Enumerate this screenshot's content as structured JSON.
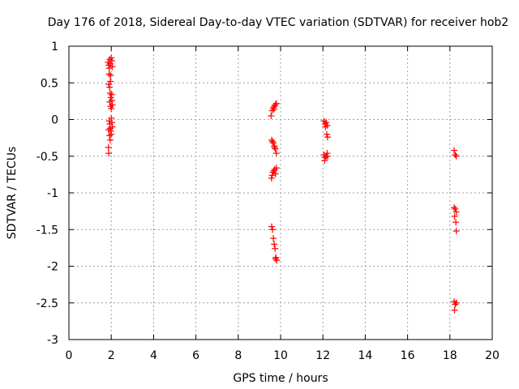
{
  "chart_data": {
    "type": "scatter",
    "title": "Day 176 of 2018, Sidereal Day-to-day VTEC variation (SDTVAR) for receiver hob2",
    "xlabel": "GPS time / hours",
    "ylabel": "SDTVAR / TECUs",
    "xlim": [
      0,
      20
    ],
    "ylim": [
      -3,
      1
    ],
    "xticks": [
      0,
      2,
      4,
      6,
      8,
      10,
      12,
      14,
      16,
      18,
      20
    ],
    "xtick_labels": [
      "0",
      "2",
      "4",
      "6",
      "8",
      "10",
      "12",
      "14",
      "16",
      "18",
      "20"
    ],
    "yticks": [
      -3,
      -2.5,
      -2,
      -1.5,
      -1,
      -0.5,
      0,
      0.5,
      1
    ],
    "ytick_labels": [
      "-3",
      "-2.5",
      "-2",
      "-1.5",
      "-1",
      "-0.5",
      "0",
      "0.5",
      "1"
    ],
    "grid": true,
    "marker": "+",
    "color": "#ff0000",
    "series": [
      {
        "name": "SDTVAR",
        "points": [
          [
            1.85,
            0.78
          ],
          [
            1.88,
            0.74
          ],
          [
            1.9,
            0.7
          ],
          [
            1.93,
            0.82
          ],
          [
            1.95,
            0.76
          ],
          [
            1.97,
            0.6
          ],
          [
            2.0,
            0.84
          ],
          [
            2.03,
            0.8
          ],
          [
            2.05,
            0.72
          ],
          [
            1.9,
            0.62
          ],
          [
            1.88,
            0.48
          ],
          [
            1.92,
            0.44
          ],
          [
            1.95,
            0.36
          ],
          [
            1.98,
            0.3
          ],
          [
            2.02,
            0.34
          ],
          [
            2.05,
            0.2
          ],
          [
            2.0,
            0.15
          ],
          [
            1.97,
            0.18
          ],
          [
            2.03,
            0.26
          ],
          [
            1.93,
            0.24
          ],
          [
            1.9,
            -0.02
          ],
          [
            1.93,
            -0.06
          ],
          [
            1.95,
            -0.12
          ],
          [
            1.98,
            -0.16
          ],
          [
            2.0,
            -0.2
          ],
          [
            1.92,
            -0.22
          ],
          [
            1.88,
            -0.14
          ],
          [
            2.03,
            -0.04
          ],
          [
            2.05,
            -0.1
          ],
          [
            1.95,
            -0.28
          ],
          [
            1.87,
            -0.38
          ],
          [
            1.88,
            -0.46
          ],
          [
            2.0,
            0.02
          ],
          [
            1.96,
            0.52
          ],
          [
            9.55,
            0.05
          ],
          [
            9.6,
            0.12
          ],
          [
            9.65,
            0.16
          ],
          [
            9.7,
            0.18
          ],
          [
            9.75,
            0.2
          ],
          [
            9.8,
            0.22
          ],
          [
            9.68,
            0.14
          ],
          [
            9.58,
            -0.28
          ],
          [
            9.62,
            -0.3
          ],
          [
            9.66,
            -0.32
          ],
          [
            9.7,
            -0.36
          ],
          [
            9.75,
            -0.4
          ],
          [
            9.8,
            -0.46
          ],
          [
            9.72,
            -0.38
          ],
          [
            9.57,
            -0.8
          ],
          [
            9.6,
            -0.76
          ],
          [
            9.64,
            -0.72
          ],
          [
            9.68,
            -0.7
          ],
          [
            9.72,
            -0.68
          ],
          [
            9.76,
            -0.74
          ],
          [
            9.8,
            -0.66
          ],
          [
            9.58,
            -1.46
          ],
          [
            9.62,
            -1.5
          ],
          [
            9.66,
            -1.62
          ],
          [
            9.7,
            -1.7
          ],
          [
            9.74,
            -1.76
          ],
          [
            9.78,
            -1.88
          ],
          [
            9.82,
            -1.92
          ],
          [
            9.76,
            -1.9
          ],
          [
            12.05,
            -0.02
          ],
          [
            12.1,
            -0.06
          ],
          [
            12.15,
            -0.04
          ],
          [
            12.2,
            -0.08
          ],
          [
            12.12,
            -0.1
          ],
          [
            12.18,
            -0.2
          ],
          [
            12.22,
            -0.24
          ],
          [
            12.05,
            -0.48
          ],
          [
            12.1,
            -0.52
          ],
          [
            12.15,
            -0.5
          ],
          [
            12.2,
            -0.46
          ],
          [
            12.08,
            -0.56
          ],
          [
            12.22,
            -0.5
          ],
          [
            18.2,
            -0.42
          ],
          [
            18.25,
            -0.48
          ],
          [
            18.3,
            -0.5
          ],
          [
            18.2,
            -1.2
          ],
          [
            18.25,
            -1.22
          ],
          [
            18.3,
            -1.26
          ],
          [
            18.22,
            -1.32
          ],
          [
            18.28,
            -1.4
          ],
          [
            18.3,
            -1.52
          ],
          [
            18.2,
            -2.48
          ],
          [
            18.25,
            -2.52
          ],
          [
            18.3,
            -2.5
          ],
          [
            18.22,
            -2.6
          ]
        ]
      }
    ]
  }
}
